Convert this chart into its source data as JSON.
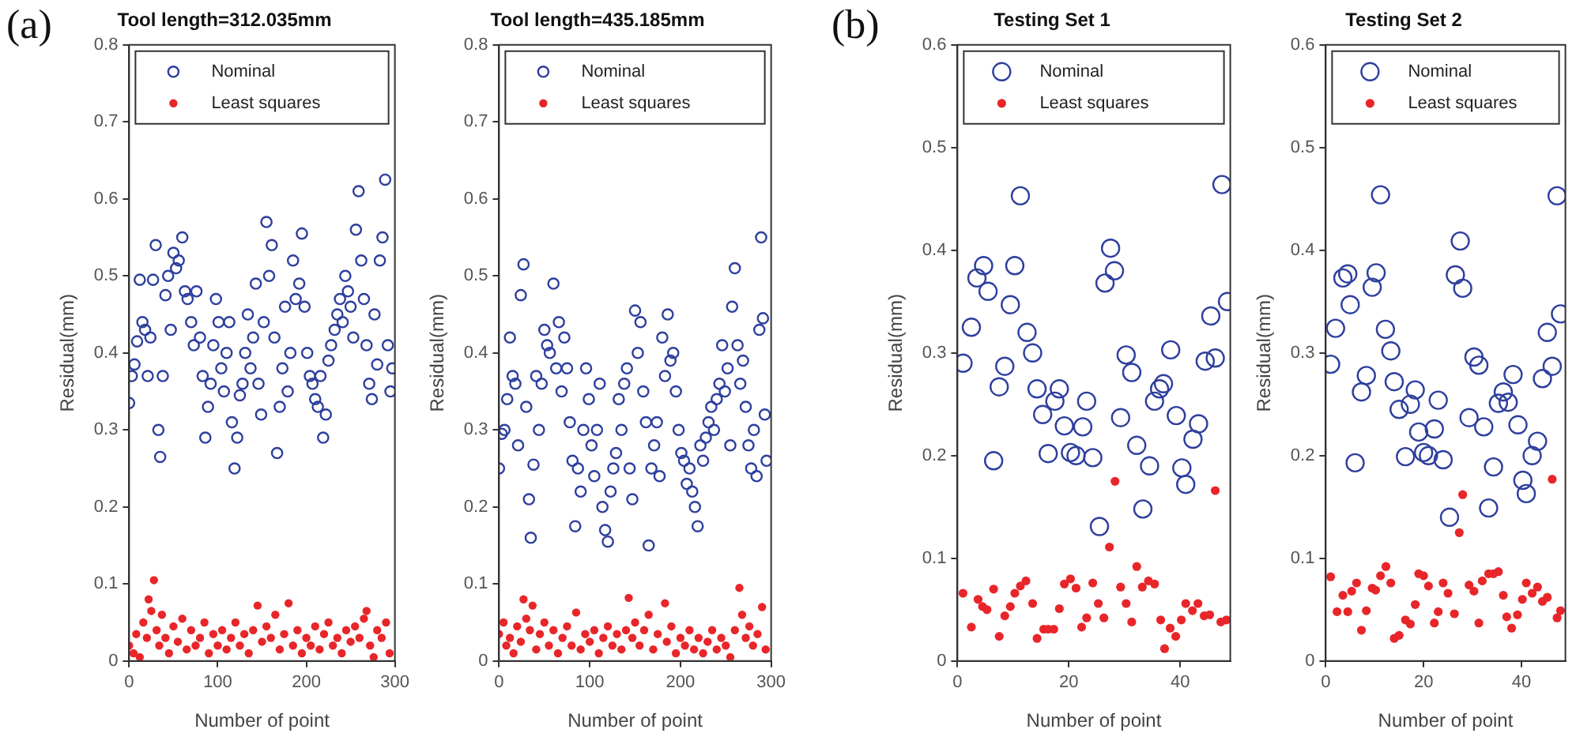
{
  "chart_data": [
    {
      "type": "scatter",
      "title": "Tool length=312.035mm",
      "xlabel": "Number of point",
      "ylabel": "Residual(mm)",
      "annotations": [
        "(a)"
      ],
      "xlim": [
        0,
        300
      ],
      "xticks": [
        0,
        100,
        200,
        300
      ],
      "ylim": [
        0,
        0.8
      ],
      "yticks": [
        0,
        0.1,
        0.2,
        0.3,
        0.4,
        0.5,
        0.6,
        0.7,
        0.8
      ],
      "legend": "top",
      "marker": "circle",
      "series": [
        {
          "name": "Nominal",
          "color": "#2e3f9e",
          "x": [
            0,
            3,
            6,
            9,
            12,
            15,
            18,
            21,
            24,
            27,
            30,
            33,
            35,
            38,
            41,
            44,
            47,
            50,
            53,
            56,
            60,
            63,
            66,
            70,
            73,
            76,
            80,
            83,
            86,
            89,
            92,
            95,
            98,
            101,
            104,
            107,
            110,
            113,
            116,
            119,
            122,
            125,
            128,
            131,
            134,
            137,
            140,
            143,
            146,
            149,
            152,
            155,
            158,
            161,
            164,
            167,
            170,
            173,
            176,
            179,
            182,
            185,
            188,
            192,
            195,
            198,
            201,
            204,
            207,
            210,
            213,
            216,
            219,
            222,
            225,
            228,
            232,
            235,
            238,
            241,
            244,
            247,
            250,
            253,
            256,
            259,
            262,
            265,
            268,
            271,
            274,
            277,
            280,
            283,
            286,
            289,
            292,
            295,
            297
          ],
          "values": [
            0.335,
            0.37,
            0.385,
            0.415,
            0.495,
            0.44,
            0.43,
            0.37,
            0.42,
            0.495,
            0.54,
            0.3,
            0.265,
            0.37,
            0.475,
            0.5,
            0.43,
            0.53,
            0.51,
            0.52,
            0.55,
            0.48,
            0.47,
            0.44,
            0.41,
            0.48,
            0.42,
            0.37,
            0.29,
            0.33,
            0.36,
            0.41,
            0.47,
            0.44,
            0.38,
            0.35,
            0.4,
            0.44,
            0.31,
            0.25,
            0.29,
            0.345,
            0.36,
            0.4,
            0.45,
            0.38,
            0.42,
            0.49,
            0.36,
            0.32,
            0.44,
            0.57,
            0.5,
            0.54,
            0.42,
            0.27,
            0.33,
            0.38,
            0.46,
            0.35,
            0.4,
            0.52,
            0.47,
            0.49,
            0.555,
            0.46,
            0.4,
            0.37,
            0.36,
            0.34,
            0.33,
            0.37,
            0.29,
            0.32,
            0.39,
            0.41,
            0.43,
            0.45,
            0.47,
            0.44,
            0.5,
            0.48,
            0.46,
            0.42,
            0.56,
            0.61,
            0.52,
            0.47,
            0.41,
            0.36,
            0.34,
            0.45,
            0.385,
            0.52,
            0.55,
            0.625,
            0.41,
            0.35,
            0.38
          ]
        },
        {
          "name": "Least squares",
          "color": "#e8262a",
          "x": [
            0,
            5,
            8,
            12,
            16,
            20,
            22,
            25,
            28,
            31,
            34,
            37,
            41,
            45,
            50,
            55,
            60,
            65,
            70,
            75,
            80,
            85,
            90,
            95,
            100,
            105,
            110,
            115,
            120,
            125,
            130,
            135,
            140,
            145,
            150,
            155,
            160,
            165,
            170,
            175,
            180,
            185,
            190,
            195,
            200,
            205,
            210,
            215,
            220,
            225,
            230,
            235,
            240,
            245,
            250,
            255,
            260,
            265,
            268,
            272,
            276,
            280,
            285,
            290,
            294
          ],
          "values": [
            0.02,
            0.01,
            0.035,
            0.005,
            0.05,
            0.03,
            0.08,
            0.065,
            0.105,
            0.04,
            0.02,
            0.06,
            0.03,
            0.01,
            0.045,
            0.025,
            0.055,
            0.015,
            0.04,
            0.02,
            0.03,
            0.05,
            0.01,
            0.035,
            0.02,
            0.04,
            0.015,
            0.03,
            0.05,
            0.02,
            0.035,
            0.01,
            0.04,
            0.072,
            0.025,
            0.045,
            0.03,
            0.06,
            0.015,
            0.035,
            0.075,
            0.02,
            0.04,
            0.01,
            0.03,
            0.02,
            0.045,
            0.015,
            0.035,
            0.05,
            0.02,
            0.03,
            0.01,
            0.04,
            0.025,
            0.045,
            0.03,
            0.055,
            0.065,
            0.02,
            0.005,
            0.04,
            0.03,
            0.05,
            0.01
          ]
        }
      ]
    },
    {
      "type": "scatter",
      "title": "Tool length=435.185mm",
      "xlabel": "Number of point",
      "ylabel": "Residual(mm)",
      "xlim": [
        0,
        300
      ],
      "xticks": [
        0,
        100,
        200,
        300
      ],
      "ylim": [
        0,
        0.8
      ],
      "yticks": [
        0,
        0.1,
        0.2,
        0.3,
        0.4,
        0.5,
        0.6,
        0.7,
        0.8
      ],
      "legend": "top",
      "marker": "circle",
      "series": [
        {
          "name": "Nominal",
          "color": "#2e3f9e",
          "x": [
            0,
            3,
            6,
            9,
            12,
            15,
            18,
            21,
            24,
            27,
            30,
            33,
            35,
            38,
            41,
            44,
            47,
            50,
            53,
            56,
            60,
            63,
            66,
            69,
            72,
            75,
            78,
            81,
            84,
            87,
            90,
            93,
            96,
            99,
            102,
            105,
            108,
            111,
            114,
            117,
            120,
            123,
            126,
            129,
            132,
            135,
            138,
            141,
            144,
            147,
            150,
            153,
            156,
            159,
            162,
            165,
            168,
            171,
            174,
            177,
            180,
            183,
            186,
            189,
            192,
            195,
            198,
            201,
            204,
            207,
            210,
            213,
            216,
            219,
            222,
            225,
            228,
            231,
            234,
            237,
            240,
            243,
            246,
            249,
            252,
            255,
            257,
            260,
            263,
            266,
            269,
            272,
            275,
            278,
            281,
            284,
            287,
            289,
            291,
            293,
            295
          ],
          "values": [
            0.25,
            0.295,
            0.3,
            0.34,
            0.42,
            0.37,
            0.36,
            0.28,
            0.475,
            0.515,
            0.33,
            0.21,
            0.16,
            0.255,
            0.37,
            0.3,
            0.36,
            0.43,
            0.41,
            0.4,
            0.49,
            0.38,
            0.44,
            0.35,
            0.42,
            0.38,
            0.31,
            0.26,
            0.175,
            0.25,
            0.22,
            0.3,
            0.38,
            0.34,
            0.28,
            0.24,
            0.3,
            0.36,
            0.2,
            0.17,
            0.155,
            0.22,
            0.25,
            0.27,
            0.34,
            0.3,
            0.36,
            0.38,
            0.25,
            0.21,
            0.455,
            0.4,
            0.44,
            0.35,
            0.31,
            0.15,
            0.25,
            0.28,
            0.31,
            0.24,
            0.42,
            0.37,
            0.45,
            0.39,
            0.4,
            0.35,
            0.3,
            0.27,
            0.26,
            0.23,
            0.25,
            0.22,
            0.2,
            0.175,
            0.28,
            0.26,
            0.29,
            0.31,
            0.33,
            0.3,
            0.34,
            0.36,
            0.41,
            0.35,
            0.38,
            0.28,
            0.46,
            0.51,
            0.41,
            0.36,
            0.39,
            0.33,
            0.28,
            0.25,
            0.3,
            0.24,
            0.43,
            0.55,
            0.445,
            0.32,
            0.26
          ]
        },
        {
          "name": "Least squares",
          "color": "#e8262a",
          "x": [
            0,
            5,
            8,
            12,
            16,
            20,
            24,
            27,
            30,
            34,
            37,
            41,
            45,
            50,
            55,
            60,
            65,
            70,
            75,
            80,
            85,
            90,
            95,
            100,
            105,
            110,
            115,
            120,
            125,
            130,
            135,
            140,
            143,
            147,
            150,
            155,
            160,
            165,
            170,
            175,
            183,
            185,
            190,
            195,
            200,
            205,
            210,
            215,
            220,
            225,
            230,
            235,
            240,
            245,
            250,
            255,
            260,
            265,
            268,
            272,
            276,
            280,
            285,
            290,
            294
          ],
          "values": [
            0.035,
            0.05,
            0.02,
            0.03,
            0.01,
            0.045,
            0.025,
            0.08,
            0.055,
            0.04,
            0.072,
            0.015,
            0.035,
            0.05,
            0.02,
            0.04,
            0.01,
            0.03,
            0.045,
            0.02,
            0.063,
            0.015,
            0.035,
            0.025,
            0.04,
            0.01,
            0.03,
            0.045,
            0.02,
            0.035,
            0.015,
            0.04,
            0.082,
            0.03,
            0.05,
            0.02,
            0.04,
            0.06,
            0.015,
            0.035,
            0.075,
            0.025,
            0.045,
            0.01,
            0.03,
            0.02,
            0.04,
            0.015,
            0.03,
            0.01,
            0.025,
            0.04,
            0.015,
            0.03,
            0.02,
            0.005,
            0.04,
            0.095,
            0.06,
            0.03,
            0.045,
            0.02,
            0.035,
            0.07,
            0.015
          ]
        }
      ]
    },
    {
      "type": "scatter",
      "title": "Testing Set 1",
      "xlabel": "Number of point",
      "ylabel": "Residual(mm)",
      "annotations": [
        "(b)"
      ],
      "xlim": [
        0,
        49
      ],
      "xticks": [
        0,
        20,
        40
      ],
      "ylim": [
        0,
        0.6
      ],
      "yticks": [
        0,
        0.1,
        0.2,
        0.3,
        0.4,
        0.5,
        0.6
      ],
      "legend": "top",
      "marker": "circle",
      "series": [
        {
          "name": "Nominal",
          "color": "#2e3f9e",
          "x": [
            1,
            2.5,
            3.5,
            4.7,
            5.5,
            6.5,
            7.5,
            8.5,
            9.5,
            10.3,
            11.3,
            12.5,
            13.5,
            14.3,
            15.3,
            16.3,
            17.5,
            18.3,
            19.2,
            20.3,
            21.3,
            22.5,
            23.2,
            24.3,
            25.5,
            26.5,
            27.5,
            28.2,
            29.3,
            30.3,
            31.3,
            32.2,
            33.3,
            34.5,
            35.4,
            36.3,
            37,
            38.3,
            39.3,
            40.3,
            41,
            42.3,
            43.3,
            44.5,
            45.5,
            46.3,
            47.5,
            48.5
          ],
          "values": [
            0.29,
            0.325,
            0.373,
            0.385,
            0.36,
            0.195,
            0.267,
            0.287,
            0.347,
            0.385,
            0.453,
            0.32,
            0.3,
            0.265,
            0.24,
            0.202,
            0.253,
            0.265,
            0.229,
            0.203,
            0.2,
            0.228,
            0.253,
            0.198,
            0.131,
            0.368,
            0.402,
            0.38,
            0.237,
            0.298,
            0.281,
            0.21,
            0.148,
            0.19,
            0.253,
            0.265,
            0.27,
            0.303,
            0.239,
            0.188,
            0.172,
            0.216,
            0.231,
            0.292,
            0.336,
            0.295,
            0.464,
            0.35
          ]
        },
        {
          "name": "Least squares",
          "color": "#e8262a",
          "x": [
            1,
            2.5,
            3.7,
            4.5,
            5.3,
            6.5,
            7.5,
            8.5,
            9.5,
            10.3,
            11.3,
            12.3,
            13.5,
            14.3,
            15.5,
            16.3,
            17.3,
            18.3,
            19.2,
            20.3,
            21.3,
            22.3,
            23.2,
            24.3,
            25.3,
            26.3,
            27.3,
            28.3,
            29.3,
            30.3,
            31.3,
            32.2,
            33.2,
            34.3,
            35.4,
            36.5,
            37.2,
            38.2,
            39.2,
            40.2,
            41,
            42.2,
            43.2,
            44.3,
            45.3,
            46.3,
            47.3,
            48.3
          ],
          "values": [
            0.066,
            0.033,
            0.06,
            0.053,
            0.05,
            0.07,
            0.024,
            0.044,
            0.053,
            0.066,
            0.073,
            0.078,
            0.056,
            0.022,
            0.031,
            0.031,
            0.031,
            0.051,
            0.075,
            0.08,
            0.071,
            0.033,
            0.042,
            0.076,
            0.056,
            0.042,
            0.111,
            0.175,
            0.072,
            0.056,
            0.038,
            0.092,
            0.072,
            0.078,
            0.075,
            0.04,
            0.012,
            0.032,
            0.024,
            0.04,
            0.056,
            0.049,
            0.056,
            0.044,
            0.045,
            0.166,
            0.038,
            0.04
          ]
        }
      ]
    },
    {
      "type": "scatter",
      "title": "Testing Set 2",
      "xlabel": "Number of point",
      "ylabel": "Residual(mm)",
      "xlim": [
        0,
        49
      ],
      "xticks": [
        0,
        20,
        40
      ],
      "ylim": [
        0,
        0.6
      ],
      "yticks": [
        0,
        0.1,
        0.2,
        0.3,
        0.4,
        0.5,
        0.6
      ],
      "legend": "top",
      "marker": "circle",
      "series": [
        {
          "name": "Nominal",
          "color": "#2e3f9e",
          "x": [
            1,
            2,
            3.5,
            4.5,
            5,
            6,
            7.3,
            8.3,
            9.5,
            10.3,
            11.2,
            12.2,
            13.3,
            14,
            15,
            16.3,
            17.3,
            18.3,
            19,
            20,
            21,
            22.2,
            23,
            24,
            25.3,
            26.5,
            27.5,
            28,
            29.3,
            30.3,
            31.3,
            32.3,
            33.3,
            34.3,
            35.3,
            36.3,
            37.3,
            38.3,
            39.3,
            40.3,
            41,
            42.2,
            43.3,
            44.3,
            45.3,
            46.3,
            47.3,
            48
          ],
          "values": [
            0.289,
            0.324,
            0.373,
            0.377,
            0.347,
            0.193,
            0.262,
            0.278,
            0.364,
            0.378,
            0.454,
            0.323,
            0.302,
            0.272,
            0.245,
            0.199,
            0.25,
            0.264,
            0.223,
            0.203,
            0.2,
            0.226,
            0.254,
            0.196,
            0.14,
            0.376,
            0.409,
            0.363,
            0.237,
            0.296,
            0.288,
            0.228,
            0.149,
            0.189,
            0.251,
            0.262,
            0.252,
            0.279,
            0.23,
            0.176,
            0.163,
            0.2,
            0.214,
            0.275,
            0.32,
            0.287,
            0.453,
            0.338
          ]
        },
        {
          "name": "Least squares",
          "color": "#e8262a",
          "x": [
            1,
            2.3,
            3.5,
            4.5,
            5.3,
            6.3,
            7.3,
            8.3,
            9.5,
            10.2,
            11.2,
            12.3,
            13.3,
            14,
            15,
            16.3,
            17.3,
            18.3,
            19,
            20,
            21,
            22.2,
            23,
            24,
            25,
            26.3,
            27.3,
            28,
            29.3,
            30.3,
            31.3,
            32,
            33.3,
            34.3,
            35.3,
            36.3,
            37,
            38,
            39.2,
            40.2,
            41,
            42.2,
            43.3,
            44.3,
            45.3,
            46.3,
            47.3,
            48
          ],
          "values": [
            0.082,
            0.048,
            0.064,
            0.048,
            0.068,
            0.076,
            0.03,
            0.049,
            0.071,
            0.069,
            0.083,
            0.092,
            0.076,
            0.022,
            0.025,
            0.04,
            0.036,
            0.055,
            0.085,
            0.083,
            0.073,
            0.037,
            0.048,
            0.076,
            0.066,
            0.046,
            0.125,
            0.162,
            0.074,
            0.068,
            0.037,
            0.078,
            0.085,
            0.085,
            0.087,
            0.064,
            0.043,
            0.032,
            0.045,
            0.06,
            0.076,
            0.066,
            0.072,
            0.058,
            0.062,
            0.177,
            0.042,
            0.049
          ]
        }
      ]
    }
  ]
}
